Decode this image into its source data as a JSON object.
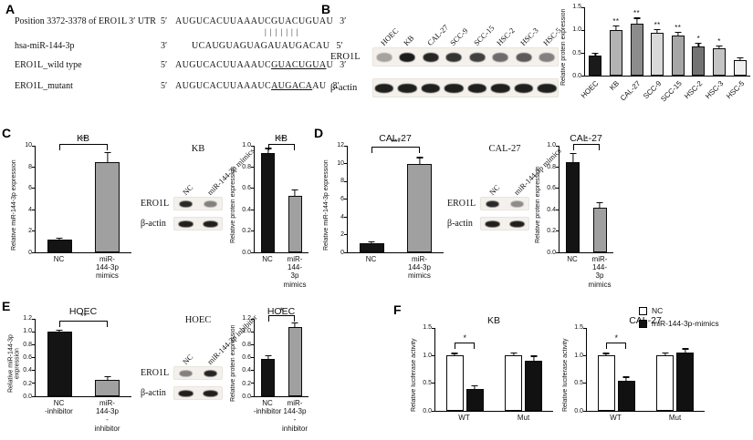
{
  "figure": {
    "panel_letters": {
      "a": "A",
      "b": "B",
      "c": "C",
      "d": "D",
      "e": "E",
      "f": "F"
    }
  },
  "panel_a": {
    "rows": [
      {
        "label": "Position 3372-3378 of ERO1L 3′ UTR",
        "prefix": "5′",
        "seq": "AUGUCACUUAAAUCGUACUGUAU",
        "suffix": "3′"
      },
      {
        "pipes": "|||||||"
      },
      {
        "label": "hsa-miR-144-3p",
        "prefix": "3′",
        "seq": "UCAUGUAGUAGAUAUGACAU",
        "suffix": "5′",
        "indent": true
      },
      {
        "label": "ERO1L_wild type",
        "prefix": "5′",
        "seq_pre": "AUGUCACUUAAAUC",
        "seq_underline": "GUACUGUA",
        "seq_post": "U",
        "suffix": "3′"
      },
      {
        "label": "ERO1L_mutant",
        "prefix": "5′",
        "seq_pre": "AUGUCACUUAAAUC",
        "seq_underline": "AUGACA",
        "seq_post": "AU",
        "suffix": "3′"
      }
    ]
  },
  "blots": [
    {
      "el": "blotB",
      "lanes": [
        "HOEC",
        "KB",
        "CAL-27",
        "SCC-9",
        "SCC-15",
        "HSC-2",
        "HSC-3",
        "HSC-5"
      ],
      "rows": [
        {
          "label": "ERO1L",
          "band_w": 0.66,
          "bands": [
            0.35,
            0.97,
            0.92,
            0.85,
            0.8,
            0.6,
            0.68,
            0.5
          ]
        },
        {
          "label": "β-actin",
          "band_w": 0.8,
          "bands": [
            0.95,
            0.95,
            0.95,
            0.95,
            0.95,
            0.95,
            0.95,
            0.95
          ]
        }
      ]
    },
    {
      "el": "blotC",
      "title": "KB",
      "lanes": [
        "NC",
        "miR-144-3p mimics"
      ],
      "rows": [
        {
          "label": "ERO1L",
          "band_w": 0.55,
          "bands": [
            0.9,
            0.5
          ]
        },
        {
          "label": "β-actin",
          "band_w": 0.62,
          "bands": [
            0.95,
            0.95
          ]
        }
      ]
    },
    {
      "el": "blotD",
      "title": "CAL-27",
      "lanes": [
        "NC",
        "miR-144-3p mimics"
      ],
      "rows": [
        {
          "label": "ERO1L",
          "band_w": 0.55,
          "bands": [
            0.9,
            0.45
          ]
        },
        {
          "label": "β-actin",
          "band_w": 0.62,
          "bands": [
            0.95,
            0.95
          ]
        }
      ]
    },
    {
      "el": "blotE",
      "title": "HOEC",
      "lanes": [
        "NC",
        "miR-144-3p inhibitor"
      ],
      "rows": [
        {
          "label": "ERO1L",
          "band_w": 0.55,
          "bands": [
            0.5,
            0.92
          ]
        },
        {
          "label": "β-actin",
          "band_w": 0.62,
          "bands": [
            0.95,
            0.95
          ]
        }
      ]
    }
  ],
  "chart_data": [
    {
      "el": "chartB",
      "type": "bar",
      "title": "",
      "ylabel": "Relative protein expression",
      "ylim": [
        0,
        1.5
      ],
      "yticks": [
        "0.0",
        "0.5",
        "1.0",
        "1.5"
      ],
      "categories": [
        "HOEC",
        "KB",
        "CAL-27",
        "SCC-9",
        "SCC-15",
        "HSC-2",
        "HSC-3",
        "HSC-5"
      ],
      "values": [
        0.45,
        1.0,
        1.15,
        0.95,
        0.88,
        0.65,
        0.6,
        0.35
      ],
      "errors": [
        0.03,
        0.08,
        0.1,
        0.05,
        0.06,
        0.05,
        0.04,
        0.03
      ],
      "stars_per_bar": [
        "",
        "**",
        "**",
        "**",
        "**",
        "*",
        "*",
        ""
      ],
      "bar_colors": [
        "#1a1a1a",
        "#b3b3b3",
        "#8c8c8c",
        "#d9d9d9",
        "#a6a6a6",
        "#737373",
        "#c4c4c4",
        "#efefef"
      ],
      "bar_frac": 0.62,
      "x_rotate": true
    },
    {
      "el": "chartC1",
      "type": "bar",
      "title": "KB",
      "ylabel": "Relative miR-144-3p expression",
      "ylim": [
        0,
        10
      ],
      "yticks": [
        "0",
        "2",
        "4",
        "6",
        "8",
        "10"
      ],
      "categories": [
        "NC",
        "miR-144-3p\nmimics"
      ],
      "values": [
        1.2,
        8.5
      ],
      "errors": [
        0.1,
        0.8
      ],
      "bar_colors": [
        "#141414",
        "#a0a0a0"
      ],
      "comparison": {
        "from": 0,
        "to": 1,
        "stars": "**"
      }
    },
    {
      "el": "chartC2",
      "type": "bar",
      "title": "KB",
      "ylabel": "Relative protein expression",
      "ylim": [
        0,
        1.0
      ],
      "yticks": [
        "0.0",
        "0.2",
        "0.4",
        "0.6",
        "0.8",
        "1.0"
      ],
      "categories": [
        "NC",
        "miR-144-3p\nmimics"
      ],
      "values": [
        0.93,
        0.53
      ],
      "errors": [
        0.04,
        0.05
      ],
      "bar_colors": [
        "#141414",
        "#a0a0a0"
      ],
      "comparison": {
        "from": 0,
        "to": 1,
        "stars": "**"
      }
    },
    {
      "el": "chartD1",
      "type": "bar",
      "title": "CAL-27",
      "ylabel": "Relative miR-144-3p expression",
      "ylim": [
        0,
        12
      ],
      "yticks": [
        "0",
        "2",
        "4",
        "6",
        "8",
        "10",
        "12"
      ],
      "categories": [
        "NC",
        "miR-144-3p\nmimics"
      ],
      "values": [
        1.0,
        10.0
      ],
      "errors": [
        0.1,
        0.6
      ],
      "bar_colors": [
        "#141414",
        "#a0a0a0"
      ],
      "comparison": {
        "from": 0,
        "to": 1,
        "stars": "***"
      }
    },
    {
      "el": "chartD2",
      "type": "bar",
      "title": "CAL-27",
      "ylabel": "Relative protein expression",
      "ylim": [
        0,
        1.0
      ],
      "yticks": [
        "0.0",
        "0.2",
        "0.4",
        "0.6",
        "0.8",
        "1.0"
      ],
      "categories": [
        "NC",
        "miR-144-3p\nmimics"
      ],
      "values": [
        0.85,
        0.42
      ],
      "errors": [
        0.07,
        0.04
      ],
      "bar_colors": [
        "#141414",
        "#a0a0a0"
      ],
      "comparison": {
        "from": 0,
        "to": 1,
        "stars": "*"
      }
    },
    {
      "el": "chartE1",
      "type": "bar",
      "title": "HOEC",
      "ylabel": "Relative miR-144-3p expression",
      "ylim": [
        0,
        1.2
      ],
      "yticks": [
        "0.0",
        "0.2",
        "0.4",
        "0.6",
        "0.8",
        "1.0",
        "1.2"
      ],
      "categories": [
        "NC\n-inhibitor",
        "miR-144-3p\n-inhibitor"
      ],
      "values": [
        1.0,
        0.25
      ],
      "errors": [
        0.02,
        0.05
      ],
      "bar_colors": [
        "#141414",
        "#a0a0a0"
      ],
      "comparison": {
        "from": 0,
        "to": 1,
        "stars": "**"
      }
    },
    {
      "el": "chartE2",
      "type": "bar",
      "title": "HOEC",
      "ylabel": "Relative protein expression",
      "ylim": [
        0,
        1.2
      ],
      "yticks": [
        "0.0",
        "0.2",
        "0.4",
        "0.6",
        "0.8",
        "1.0",
        "1.2"
      ],
      "categories": [
        "NC\n-inhibitor",
        "miR-144-3p\n-inhibitor"
      ],
      "values": [
        0.58,
        1.07
      ],
      "errors": [
        0.04,
        0.06
      ],
      "bar_colors": [
        "#141414",
        "#a0a0a0"
      ],
      "comparison": {
        "from": 0,
        "to": 1,
        "stars": "*"
      }
    },
    {
      "el": "chartF1",
      "type": "grouped_bar",
      "title": "KB",
      "ylabel": "Relative luciferase activity",
      "ylim": [
        0,
        1.5
      ],
      "yticks": [
        "0.0",
        "0.5",
        "1.0",
        "1.5"
      ],
      "categories": [
        "WT",
        "Mut"
      ],
      "series": [
        {
          "name": "NC",
          "fill": "#ffffff",
          "values": [
            1.0,
            1.0
          ],
          "errors": [
            0.03,
            0.04
          ]
        },
        {
          "name": "miR-144-3p-mimics",
          "fill": "#111111",
          "values": [
            0.4,
            0.9
          ],
          "errors": [
            0.04,
            0.08
          ]
        }
      ],
      "comparison": {
        "group": 0,
        "stars": "*"
      }
    },
    {
      "el": "chartF2",
      "type": "grouped_bar",
      "title": "CAL-27",
      "ylabel": "Relative luciferase activity",
      "ylim": [
        0,
        1.5
      ],
      "yticks": [
        "0.0",
        "0.5",
        "1.0",
        "1.5"
      ],
      "categories": [
        "WT",
        "Mut"
      ],
      "series": [
        {
          "name": "NC",
          "fill": "#ffffff",
          "values": [
            1.0,
            1.0
          ],
          "errors": [
            0.03,
            0.04
          ]
        },
        {
          "name": "miR-144-3p-mimics",
          "fill": "#111111",
          "values": [
            0.55,
            1.05
          ],
          "errors": [
            0.05,
            0.06
          ]
        }
      ],
      "comparison": {
        "group": 0,
        "stars": "*"
      }
    }
  ],
  "legend_f": {
    "items": [
      {
        "label": "NC",
        "fill": "#ffffff"
      },
      {
        "label": "miR-144-3p-mimics",
        "fill": "#111111"
      }
    ]
  }
}
